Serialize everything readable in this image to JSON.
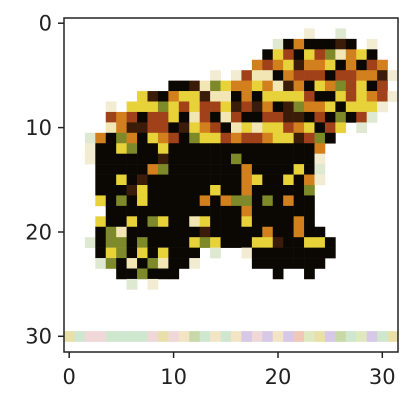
{
  "image": {
    "description_icon": "pixelated-frog-icon",
    "grid_size": [
      32,
      32
    ],
    "palette": {
      "body": "#0b0804",
      "dark_brown": "#3a1c08",
      "rust": "#a0411a",
      "orange": "#d2801e",
      "yellow": "#e8d23a",
      "olive": "#7e8a2a",
      "cream": "#f2e6b4",
      "background": "#ffffff"
    }
  },
  "axes": {
    "x_ticks": [
      "0",
      "10",
      "20",
      "30"
    ],
    "y_ticks": [
      "0",
      "10",
      "20",
      "30"
    ],
    "frame_color": "#222222"
  }
}
